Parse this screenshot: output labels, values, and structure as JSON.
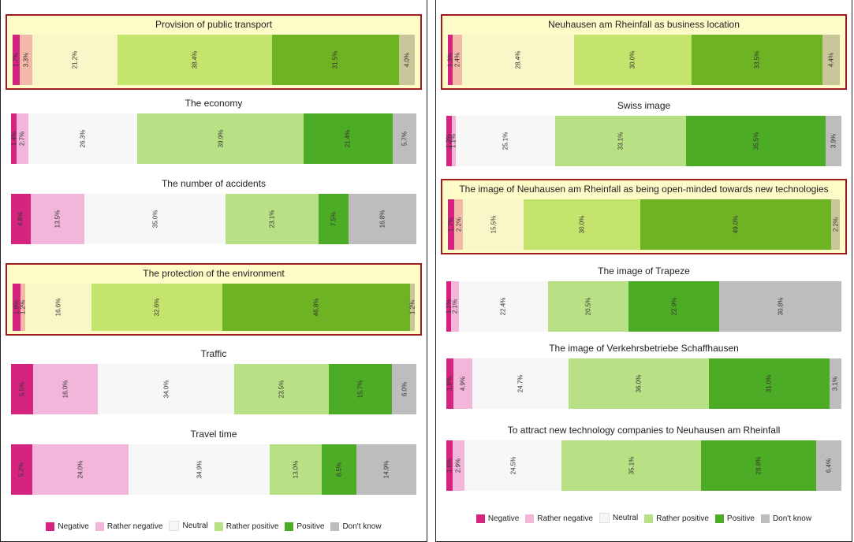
{
  "colors": {
    "Negative": "#d4247f",
    "Rather negative": "#f1b6da",
    "Neutral": "#f7f7f7",
    "Rather positive": "#b8e186",
    "Positive": "#4dac26",
    "Don't know": "#bdbdbd"
  },
  "highlight_colors": {
    "Negative": "#d4247f",
    "Rather negative": "#f4b8a8",
    "Neutral": "#f8f7c7",
    "Rather positive": "#c5e46d",
    "Positive": "#6db324",
    "Don't know": "#c9c79a"
  },
  "legend": [
    {
      "label": "Negative",
      "icon": "swatch"
    },
    {
      "label": "Rather negative",
      "icon": "swatch"
    },
    {
      "label": "Neutral",
      "icon": "swatch"
    },
    {
      "label": "Rather positive",
      "icon": "swatch"
    },
    {
      "label": "Positive",
      "icon": "swatch"
    },
    {
      "label": "Don't know",
      "icon": "swatch"
    }
  ],
  "chart_data": [
    {
      "type": "bar",
      "stacked": "100%",
      "orientation": "horizontal",
      "series": [
        "Negative",
        "Rather negative",
        "Neutral",
        "Rather positive",
        "Positive",
        "Don't know"
      ],
      "legend_position": "bottom",
      "rows": [
        {
          "title": "Provision of public transport",
          "highlighted": true,
          "values": [
            1.7,
            3.3,
            21.2,
            38.4,
            31.5,
            4.0
          ],
          "labels": [
            "1.7%",
            "3.3%",
            "21.2%",
            "38.4%",
            "31.5%",
            "4.0%"
          ]
        },
        {
          "title": "The economy",
          "highlighted": false,
          "values": [
            1.4,
            2.7,
            26.3,
            39.9,
            21.4,
            5.7
          ],
          "labels": [
            "1.4%",
            "2.7%",
            "26.3%",
            "39.9%",
            "21.4%",
            "5.7%"
          ]
        },
        {
          "title": "The number of accidents",
          "highlighted": false,
          "values": [
            4.8,
            13.5,
            35.0,
            23.1,
            7.5,
            16.8
          ],
          "labels": [
            "4.8%",
            "13.5%",
            "35.0%",
            "23.1%",
            "7.5%",
            "16.8%"
          ]
        },
        {
          "title": "The protection of the environment",
          "highlighted": true,
          "values": [
            1.9,
            1.2,
            16.6,
            32.6,
            46.8,
            1.2
          ],
          "labels": [
            "1.9%",
            "1.2%",
            "16.6%",
            "32.6%",
            "46.8%",
            "1.2%"
          ]
        },
        {
          "title": "Traffic",
          "highlighted": false,
          "values": [
            5.5,
            16.0,
            34.0,
            23.5,
            15.7,
            6.0
          ],
          "labels": [
            "5.5%",
            "16.0%",
            "34.0%",
            "23.5%",
            "15.7%",
            "6.0%"
          ]
        },
        {
          "title": "Travel time",
          "highlighted": false,
          "values": [
            5.2,
            24.0,
            34.9,
            13.0,
            8.5,
            14.9
          ],
          "labels": [
            "5.2%",
            "24.0%",
            "34.9%",
            "13.0%",
            "8.5%",
            "14.9%"
          ]
        }
      ]
    },
    {
      "type": "bar",
      "stacked": "100%",
      "orientation": "horizontal",
      "series": [
        "Negative",
        "Rather negative",
        "Neutral",
        "Rather positive",
        "Positive",
        "Don't know"
      ],
      "legend_position": "bottom",
      "rows": [
        {
          "title": "Neuhausen am Rheinfall as business location",
          "highlighted": true,
          "values": [
            1.3,
            2.4,
            28.4,
            30.0,
            33.5,
            4.4
          ],
          "labels": [
            "1.3%",
            "2.4%",
            "28.4%",
            "30.0%",
            "33.5%",
            "4.4%"
          ]
        },
        {
          "title": "Swiss image",
          "highlighted": false,
          "values": [
            1.3,
            1.1,
            25.1,
            33.1,
            35.5,
            3.9
          ],
          "labels": [
            "1.3%",
            "1.1%",
            "25.1%",
            "33.1%",
            "35.5%",
            "3.9%"
          ]
        },
        {
          "title": "The image of Neuhausen am Rheinfall as being open-minded towards new technologies",
          "highlighted": true,
          "values": [
            1.7,
            2.2,
            15.5,
            30.0,
            49.0,
            2.2
          ],
          "labels": [
            "1.7%",
            "2.2%",
            "15.5%",
            "30.0%",
            "49.0%",
            "2.2%"
          ]
        },
        {
          "title": "The image of Trapeze",
          "highlighted": false,
          "values": [
            1.1,
            2.1,
            22.4,
            20.5,
            22.9,
            30.8
          ],
          "labels": [
            "1.1%",
            "2.1%",
            "22.4%",
            "20.5%",
            "22.9%",
            "30.8%"
          ]
        },
        {
          "title": "The image of Verkehrsbetriebe Schaffhausen",
          "highlighted": false,
          "values": [
            1.8,
            4.9,
            24.7,
            36.0,
            31.0,
            3.1
          ],
          "labels": [
            "1.8%",
            "4.9%",
            "24.7%",
            "36.0%",
            "31.0%",
            "3.1%"
          ]
        },
        {
          "title": "To attract new technology companies to Neuhausen am Rheinfall",
          "highlighted": false,
          "values": [
            1.6,
            2.9,
            24.5,
            35.1,
            28.8,
            6.4
          ],
          "labels": [
            "1.6%",
            "2.9%",
            "24.5%",
            "35.1%",
            "28.8%",
            "6.4%"
          ]
        }
      ]
    }
  ]
}
